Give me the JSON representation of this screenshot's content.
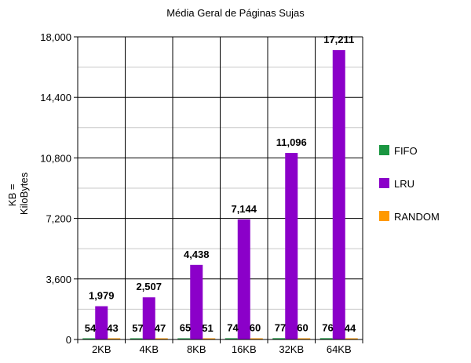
{
  "chart_data": {
    "type": "bar",
    "title": "Média Geral de Páginas Sujas",
    "ylabel_lines": [
      "KB =",
      "KiloBytes"
    ],
    "xlabel": "",
    "categories": [
      "2KB",
      "4KB",
      "8KB",
      "16KB",
      "32KB",
      "64KB"
    ],
    "series": [
      {
        "name": "FIFO",
        "color": "#1a9641",
        "values": [
          54,
          57,
          65,
          74,
          77,
          76
        ]
      },
      {
        "name": "LRU",
        "color": "#8b00c9",
        "values": [
          1979,
          2507,
          4438,
          7144,
          11096,
          17211
        ]
      },
      {
        "name": "RANDOM",
        "color": "#ff9900",
        "values": [
          43,
          47,
          51,
          60,
          60,
          44
        ]
      }
    ],
    "ylim": [
      0,
      18000
    ],
    "yticks": [
      0,
      3600,
      7200,
      10800,
      14400,
      18000
    ],
    "ytick_labels": [
      "0",
      "3,600",
      "7,200",
      "10,800",
      "14,400",
      "18,000"
    ],
    "data_labels": [
      [
        "54",
        "1,979",
        "43"
      ],
      [
        "57",
        "2,507",
        "47"
      ],
      [
        "65",
        "4,438",
        "51"
      ],
      [
        "74",
        "7,144",
        "60"
      ],
      [
        "77",
        "11,096",
        "60"
      ],
      [
        "76",
        "17,211",
        "44"
      ]
    ],
    "grid": true,
    "legend_position": "right"
  }
}
